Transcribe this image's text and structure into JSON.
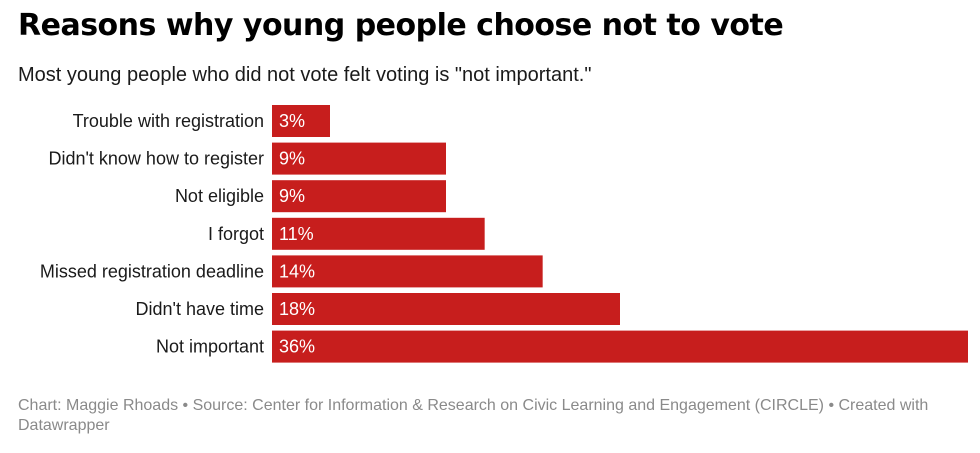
{
  "chart_data": {
    "type": "bar",
    "orientation": "horizontal",
    "title": "Reasons why young people choose not to vote",
    "subtitle": "Most young people who did not vote felt voting is \"not important.\"",
    "categories": [
      "Trouble with registration",
      "Didn't know how to register",
      "Not eligible",
      "I forgot",
      "Missed registration deadline",
      "Didn't have time",
      "Not important"
    ],
    "values": [
      3,
      9,
      9,
      11,
      14,
      18,
      36
    ],
    "value_labels": [
      "3%",
      "9%",
      "9%",
      "11%",
      "14%",
      "18%",
      "36%"
    ],
    "unit": "%",
    "xlim": [
      0,
      36
    ],
    "bar_color": "#c71e1d",
    "label_color": "#ffffff",
    "grid": false,
    "legend": "none"
  },
  "footer": {
    "credit": "Chart: Maggie Rhoads • Source: Center for Information & Research on Civic Learning and Engagement (CIRCLE) • Created with Datawrapper"
  }
}
